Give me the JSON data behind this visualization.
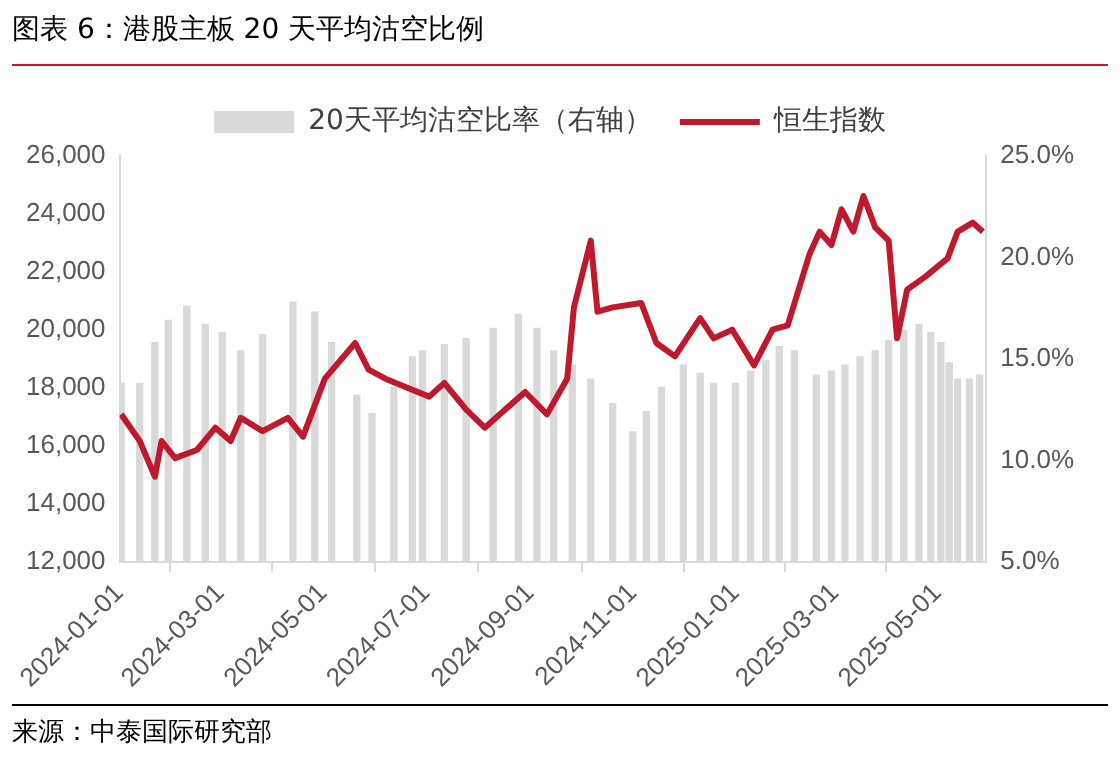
{
  "chart_data": {
    "type": "bar",
    "title": "图表 6：港股主板 20 天平均沽空比例",
    "legend": "top",
    "xlim": [
      "2024-01-01",
      "2025-05-30"
    ],
    "xticks": [
      "2024-01-01",
      "2024-03-01",
      "2024-05-01",
      "2024-07-01",
      "2024-09-01",
      "2024-11-01",
      "2025-01-01",
      "2025-03-01",
      "2025-05-01"
    ],
    "ylim": [
      12000,
      26000
    ],
    "yticks": [
      {
        "value": 12000,
        "label": "12,000"
      },
      {
        "value": 14000,
        "label": "14,000"
      },
      {
        "value": 16000,
        "label": "16,000"
      },
      {
        "value": 18000,
        "label": "18,000"
      },
      {
        "value": 20000,
        "label": "20,000"
      },
      {
        "value": 22000,
        "label": "22,000"
      },
      {
        "value": 24000,
        "label": "24,000"
      },
      {
        "value": 26000,
        "label": "26,000"
      }
    ],
    "y2lim": [
      5,
      25
    ],
    "y2ticks": [
      {
        "value": 5,
        "label": "5.0%"
      },
      {
        "value": 10,
        "label": "10.0%"
      },
      {
        "value": 15,
        "label": "15.0%"
      },
      {
        "value": 20,
        "label": "20.0%"
      },
      {
        "value": 25,
        "label": "25.0%"
      }
    ],
    "annotations": [
      "来源：中泰国际研究部"
    ],
    "series": [
      {
        "name": "20天平均沽空比率（右轴）",
        "type": "bar",
        "axis": "y2",
        "color": "#d9d9d9",
        "x": [
          "2024-01-02",
          "2024-01-13",
          "2024-01-22",
          "2024-01-30",
          "2024-02-10",
          "2024-02-21",
          "2024-03-02",
          "2024-03-13",
          "2024-03-26",
          "2024-04-13",
          "2024-04-26",
          "2024-05-06",
          "2024-05-21",
          "2024-05-30",
          "2024-06-12",
          "2024-06-23",
          "2024-06-29",
          "2024-07-12",
          "2024-07-25",
          "2024-08-10",
          "2024-08-25",
          "2024-09-05",
          "2024-09-15",
          "2024-09-26",
          "2024-10-07",
          "2024-10-20",
          "2024-11-01",
          "2024-11-09",
          "2024-11-18",
          "2024-12-01",
          "2024-12-11",
          "2024-12-19",
          "2025-01-01",
          "2025-01-10",
          "2025-01-19",
          "2025-01-27",
          "2025-02-05",
          "2025-02-18",
          "2025-02-27",
          "2025-03-07",
          "2025-03-16",
          "2025-03-25",
          "2025-04-02",
          "2025-04-11",
          "2025-04-20",
          "2025-04-27",
          "2025-05-03",
          "2025-05-08",
          "2025-05-13",
          "2025-05-20",
          "2025-05-26"
        ],
        "values": [
          13.8,
          13.8,
          15.8,
          16.9,
          17.6,
          16.7,
          16.3,
          15.4,
          16.2,
          17.8,
          17.3,
          15.8,
          13.2,
          12.3,
          13.6,
          15.1,
          15.4,
          15.7,
          16.0,
          16.5,
          17.2,
          16.5,
          15.4,
          14.7,
          14.0,
          12.8,
          11.4,
          12.4,
          13.6,
          14.7,
          14.3,
          13.8,
          13.8,
          14.4,
          14.9,
          15.6,
          15.4,
          14.2,
          14.4,
          14.7,
          15.1,
          15.4,
          15.9,
          16.4,
          16.7,
          16.3,
          15.8,
          14.8,
          14.0,
          14.0,
          14.2
        ]
      },
      {
        "name": "恒生指数",
        "type": "line",
        "color": "#c0182d",
        "x": [
          "2024-01-02",
          "2024-01-13",
          "2024-01-22",
          "2024-01-26",
          "2024-02-03",
          "2024-02-16",
          "2024-02-27",
          "2024-03-07",
          "2024-03-13",
          "2024-03-26",
          "2024-04-10",
          "2024-04-19",
          "2024-05-02",
          "2024-05-20",
          "2024-05-28",
          "2024-06-07",
          "2024-06-20",
          "2024-07-03",
          "2024-07-12",
          "2024-07-25",
          "2024-08-05",
          "2024-08-29",
          "2024-09-11",
          "2024-09-23",
          "2024-09-27",
          "2024-10-07",
          "2024-10-11",
          "2024-10-20",
          "2024-11-06",
          "2024-11-15",
          "2024-11-26",
          "2024-12-11",
          "2024-12-19",
          "2024-12-30",
          "2025-01-12",
          "2025-01-23",
          "2025-02-01",
          "2025-02-14",
          "2025-02-20",
          "2025-02-27",
          "2025-03-05",
          "2025-03-12",
          "2025-03-18",
          "2025-03-25",
          "2025-04-02",
          "2025-04-07",
          "2025-04-13",
          "2025-04-24",
          "2025-05-07",
          "2025-05-13",
          "2025-05-22",
          "2025-05-28"
        ],
        "values": [
          17090,
          16170,
          14940,
          16170,
          15580,
          15860,
          16630,
          16170,
          16970,
          16510,
          16970,
          16320,
          18320,
          19550,
          18630,
          18320,
          18010,
          17700,
          18170,
          17250,
          16630,
          17860,
          17090,
          18320,
          20780,
          23080,
          20630,
          20780,
          20930,
          19550,
          19090,
          20410,
          19710,
          20010,
          18780,
          20010,
          20160,
          22620,
          23390,
          22930,
          24160,
          23390,
          24620,
          23540,
          23080,
          19710,
          21390,
          21850,
          22470,
          23390,
          23700,
          23390
        ]
      }
    ]
  }
}
